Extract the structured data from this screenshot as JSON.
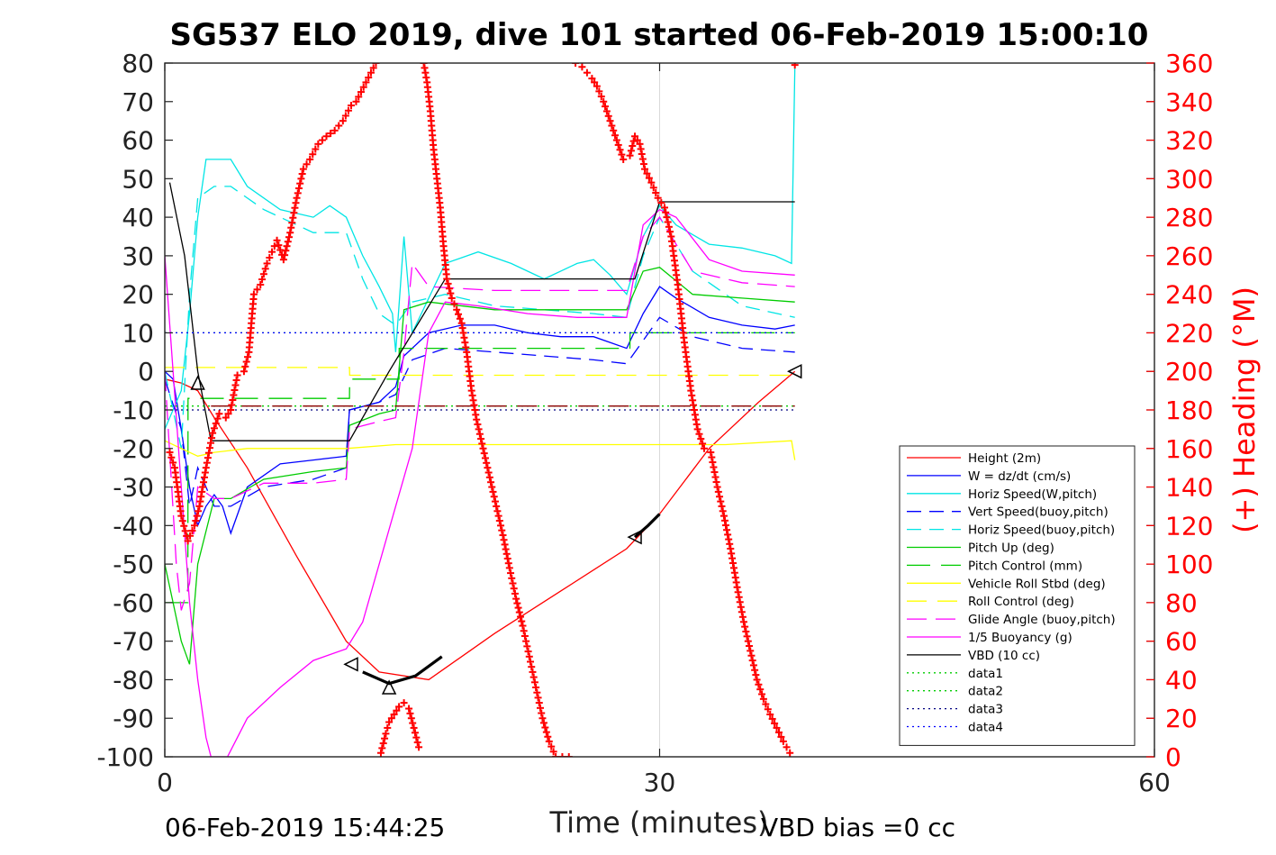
{
  "chart_data": {
    "type": "line",
    "title": "SG537 ELO 2019, dive 101 started 06-Feb-2019 15:00:10",
    "xlabel": "Time (minutes)",
    "ylabel": "",
    "y2label": "(+) Heading (°M)",
    "xlim": [
      0,
      60
    ],
    "ylim": [
      -100,
      80
    ],
    "y2lim": [
      0,
      360
    ],
    "x_ticks": [
      0,
      30,
      60
    ],
    "y_ticks": [
      80,
      70,
      60,
      50,
      40,
      30,
      20,
      10,
      0,
      -10,
      -20,
      -30,
      -40,
      -50,
      -60,
      -70,
      -80,
      -90,
      -100
    ],
    "y2_ticks": [
      360,
      340,
      320,
      300,
      280,
      260,
      240,
      220,
      200,
      180,
      160,
      140,
      120,
      100,
      80,
      60,
      40,
      20,
      0
    ],
    "grid": "x-only",
    "legend_position": "lower-right",
    "footer_left": "06-Feb-2019 15:44:25",
    "footer_right": "VBD bias =0 cc",
    "colors": {
      "heading": "#ff0000",
      "axis2": "#ff0000",
      "axis": "#222222",
      "grid": "#d9d9d9"
    },
    "series": [
      {
        "name": "Height (2m)",
        "color": "#ff0000",
        "dash": "",
        "x": [
          0,
          1,
          2,
          3,
          5,
          8,
          11,
          13,
          16,
          20,
          24,
          28,
          30,
          33,
          36,
          38.2
        ],
        "y": [
          -2,
          -3,
          -5,
          -12,
          -25,
          -48,
          -70,
          -78,
          -80,
          -68,
          -57,
          -46,
          -37,
          -20,
          -8,
          0
        ]
      },
      {
        "name": "W = dz/dt (cm/s)",
        "color": "#0000ff",
        "dash": "",
        "x": [
          0,
          0.5,
          1,
          1.5,
          2,
          2.5,
          3,
          3.5,
          4,
          5,
          7,
          9,
          11,
          11.2,
          13,
          14,
          14.5,
          16,
          18,
          20,
          22,
          24,
          26,
          28,
          29,
          30,
          31,
          33,
          35,
          37,
          38.2
        ],
        "y": [
          0,
          -2,
          -15,
          -30,
          -40,
          -35,
          -32,
          -35,
          -42,
          -30,
          -24,
          -23,
          -22,
          -10,
          -8,
          -4,
          4,
          10,
          12,
          12,
          10,
          9,
          9,
          6,
          15,
          22,
          19,
          14,
          12,
          11,
          12
        ]
      },
      {
        "name": "Horiz Speed(W,pitch)",
        "color": "#00e5e5",
        "dash": "",
        "x": [
          0,
          1,
          1.5,
          2,
          2.5,
          3,
          4,
          5,
          7,
          9,
          10,
          11,
          12,
          13,
          13.8,
          14,
          14.5,
          15,
          17,
          19,
          21,
          23,
          25,
          26,
          27,
          28,
          29,
          30,
          31,
          33,
          35,
          37,
          38,
          38.2
        ],
        "y": [
          -15,
          -5,
          15,
          40,
          55,
          55,
          55,
          48,
          42,
          40,
          43,
          40,
          30,
          22,
          15,
          5,
          35,
          10,
          28,
          31,
          28,
          24,
          28,
          29,
          25,
          20,
          35,
          43,
          38,
          33,
          32,
          30,
          28,
          79
        ]
      },
      {
        "name": "Vert Speed(buoy,pitch)",
        "color": "#0000ff",
        "dash": "16,9",
        "x": [
          0,
          1,
          1.5,
          2,
          3,
          4,
          6,
          9,
          11,
          11.2,
          13,
          14,
          15,
          17,
          20,
          23,
          26,
          28,
          29,
          30,
          32,
          35,
          38.2
        ],
        "y": [
          -2,
          -15,
          -35,
          -25,
          -35,
          -35,
          -30,
          -28,
          -25,
          -10,
          -8,
          -6,
          3,
          6,
          5,
          4,
          3,
          2,
          8,
          14,
          9,
          6,
          5
        ]
      },
      {
        "name": "Horiz Speed(buoy,pitch)",
        "color": "#00e5e5",
        "dash": "16,9",
        "x": [
          0,
          1,
          1.5,
          2,
          3,
          4,
          6,
          9,
          11,
          12,
          13,
          14,
          15,
          17,
          20,
          23,
          26,
          28,
          29,
          30,
          32,
          35,
          38.2
        ],
        "y": [
          0,
          -20,
          20,
          45,
          48,
          48,
          42,
          36,
          36,
          24,
          15,
          12,
          18,
          20,
          17,
          16,
          15,
          14,
          30,
          40,
          26,
          17,
          14
        ]
      },
      {
        "name": "Pitch Up (deg)",
        "color": "#00cc00",
        "dash": "",
        "x": [
          0,
          0.5,
          1,
          1.5,
          2,
          3,
          4,
          6,
          9,
          11,
          11.2,
          13,
          14,
          14.5,
          16,
          20,
          24,
          28,
          29,
          30,
          32,
          35,
          38.2
        ],
        "y": [
          -50,
          -60,
          -70,
          -76,
          -50,
          -33,
          -33,
          -28,
          -26,
          -25,
          -14,
          -11,
          -10,
          16,
          18,
          16,
          16,
          16,
          26,
          27,
          20,
          19,
          18
        ]
      },
      {
        "name": "Pitch Control (mm)",
        "color": "#00cc00",
        "dash": "26,12",
        "x": [
          0,
          1.4,
          1.41,
          11.2,
          11.21,
          14.2,
          14.21,
          28.2,
          28.21,
          38.2
        ],
        "y": [
          -60,
          -60,
          -7,
          -7,
          -2,
          -2,
          6,
          6,
          10,
          10
        ]
      },
      {
        "name": "Vehicle Roll Stbd (deg)",
        "color": "#ffff00",
        "dash": "",
        "x": [
          0,
          1,
          2,
          3,
          5,
          8,
          11,
          14,
          18,
          22,
          26,
          30,
          34,
          38,
          38.2
        ],
        "y": [
          -18,
          -20,
          -22,
          -21,
          -20,
          -20,
          -20,
          -19,
          -19,
          -19,
          -19,
          -19,
          -19,
          -18,
          -23
        ]
      },
      {
        "name": "Roll Control (deg)",
        "color": "#ffff00",
        "dash": "22,12",
        "x": [
          0,
          11.2,
          11.21,
          38.2
        ],
        "y": [
          1,
          1,
          -1,
          -1
        ]
      },
      {
        "name": "Glide Angle (buoy,pitch)",
        "color": "#ff00ff",
        "dash": "22,10",
        "x": [
          0,
          0.7,
          1,
          1.5,
          2,
          3,
          4,
          6,
          9,
          11,
          11.2,
          13,
          14,
          14.5,
          15,
          16,
          20,
          24,
          28,
          29,
          30,
          32,
          35,
          38.2
        ],
        "y": [
          0,
          -50,
          -62,
          -55,
          -30,
          -33,
          -33,
          -29,
          -29,
          -28,
          -15,
          -13,
          -12,
          5,
          28,
          22,
          21,
          21,
          21,
          35,
          40,
          26,
          23,
          22
        ]
      },
      {
        "name": "1/5 Buoyancy (g)",
        "color": "#ff00ff",
        "dash": "",
        "x": [
          0,
          0.5,
          1,
          1.5,
          2,
          2.5,
          2.8,
          3.8,
          5,
          7,
          9,
          11,
          12,
          14,
          15,
          16,
          17,
          19,
          22,
          25,
          28,
          29,
          30,
          31,
          33,
          35,
          38.2
        ],
        "y": [
          30,
          0,
          -30,
          -60,
          -80,
          -95,
          -100,
          -100,
          -90,
          -82,
          -75,
          -72,
          -65,
          -35,
          -20,
          10,
          18,
          17,
          15,
          14,
          14,
          38,
          42,
          40,
          29,
          26,
          25
        ]
      },
      {
        "name": "VBD (10 cc)",
        "color": "#000000",
        "dash": "",
        "x": [
          0.3,
          1.2,
          2,
          2.8,
          11.2,
          13.6,
          17,
          28.5,
          30,
          38.2
        ],
        "y": [
          49,
          30,
          0,
          -18,
          -18,
          0,
          24,
          24,
          44,
          44
        ]
      },
      {
        "name": "data1",
        "color": "#00cc00",
        "dash": "2,4",
        "x": [
          0,
          38.2
        ],
        "y": [
          -9,
          -9
        ]
      },
      {
        "name": "data2",
        "color": "#00cc00",
        "dash": "2,4",
        "x": [
          0,
          38.2
        ],
        "y": [
          10,
          10
        ]
      },
      {
        "name": "data3",
        "color": "#000080",
        "dash": "2,4",
        "x": [
          0,
          38.2
        ],
        "y": [
          -10,
          -10
        ]
      },
      {
        "name": "data4",
        "color": "#0000ff",
        "dash": "2,4",
        "x": [
          0,
          38.2
        ],
        "y": [
          10,
          10
        ]
      },
      {
        "name": "",
        "color": "#8b0000",
        "dash": "22,12",
        "x": [
          2.8,
          38.2
        ],
        "y": [
          -9,
          -9
        ]
      }
    ],
    "heading_series": {
      "name": "Heading",
      "axis": "right",
      "color": "#ff0000",
      "marker": "+",
      "x": [
        0.3,
        0.6,
        1.0,
        1.4,
        1.8,
        2.1,
        2.5,
        2.9,
        3.3,
        3.7,
        4.0,
        4.4,
        4.8,
        5.1,
        5.4,
        5.8,
        6.2,
        6.5,
        6.8,
        7.2,
        7.6,
        8.0,
        8.4,
        8.8,
        9.3,
        9.8,
        10.3,
        10.8,
        11.3,
        11.6,
        11.9,
        12.2,
        12.5,
        12.8,
        13.1,
        13.4,
        13.6,
        13.9,
        14.2,
        14.5,
        14.8,
        15.1,
        15.4,
        15.7,
        15.9,
        16.1,
        16.3,
        16.5,
        16.7,
        16.9,
        17.1,
        17.4,
        17.7,
        18.0,
        18.3,
        18.6,
        18.9,
        19.3,
        19.7,
        20.1,
        20.5,
        20.9,
        21.3,
        21.7,
        22.1,
        22.5,
        22.9,
        23.3,
        23.7,
        24.1,
        24.5,
        24.9,
        25.3,
        25.6,
        25.9,
        26.2,
        26.6,
        27.0,
        27.4,
        27.8,
        28.2,
        28.5,
        28.8,
        29.1,
        29.5,
        29.9,
        30.3,
        30.7,
        31.1,
        31.5,
        31.9,
        32.3,
        32.7,
        33.1,
        33.5,
        33.9,
        34.3,
        34.7,
        35.1,
        35.5,
        35.9,
        36.3,
        36.7,
        37.1,
        37.5,
        37.9,
        38.2
      ],
      "y": [
        158,
        150,
        125,
        112,
        120,
        130,
        150,
        168,
        178,
        176,
        180,
        198,
        200,
        210,
        240,
        245,
        256,
        262,
        268,
        258,
        272,
        290,
        305,
        310,
        318,
        322,
        325,
        330,
        338,
        340,
        345,
        350,
        355,
        360,
        2,
        12,
        18,
        22,
        26,
        28,
        25,
        15,
        5,
        360,
        350,
        335,
        315,
        300,
        285,
        265,
        248,
        238,
        232,
        225,
        210,
        190,
        175,
        160,
        145,
        130,
        115,
        98,
        82,
        68,
        52,
        36,
        20,
        8,
        0,
        0,
        0,
        360,
        358,
        355,
        352,
        348,
        340,
        330,
        320,
        310,
        312,
        322,
        318,
        305,
        298,
        290,
        285,
        270,
        245,
        215,
        190,
        170,
        160,
        158,
        140,
        125,
        108,
        88,
        70,
        55,
        40,
        30,
        22,
        15,
        8,
        2,
        359
      ]
    },
    "markers": [
      {
        "x": 2.0,
        "y": -3,
        "symbol": "triangle-up"
      },
      {
        "x": 11.3,
        "y": -76,
        "symbol": "triangle-left"
      },
      {
        "x": 13.6,
        "y": -82,
        "symbol": "triangle-up"
      },
      {
        "x": 28.5,
        "y": -43,
        "symbol": "triangle-left"
      },
      {
        "x": 38.2,
        "y": 0,
        "symbol": "triangle-left"
      }
    ],
    "bold_segments": [
      {
        "x": [
          12.0,
          13.6,
          15.2,
          16.8
        ],
        "y": [
          -78,
          -81,
          -79,
          -74
        ]
      },
      {
        "x": [
          28.5,
          29.3,
          30.0
        ],
        "y": [
          -43,
          -40,
          -37
        ]
      }
    ]
  }
}
